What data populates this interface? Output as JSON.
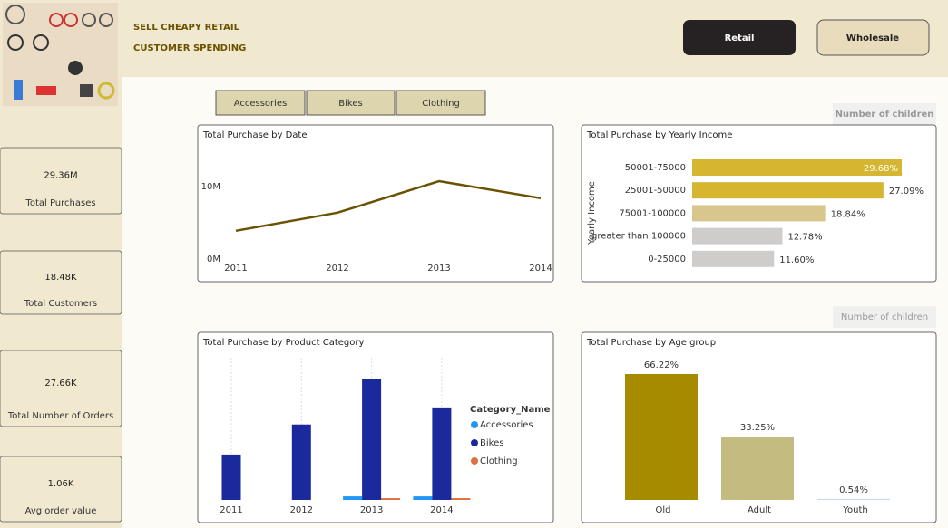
{
  "header": {
    "title_lines": [
      "SELL CHEAPY RETAIL",
      "CUSTOMER SPENDING"
    ]
  },
  "buttons": [
    "Retail",
    "Wholesale"
  ],
  "tabs": [
    "Accessories",
    "Bikes",
    "Clothing"
  ],
  "filters": [
    "Number of children",
    "Number of children"
  ],
  "kpis": [
    {
      "value": "29.36M",
      "label": "Total Purchases"
    },
    {
      "value": "18.48K",
      "label": "Total Customers"
    },
    {
      "value": "27.66K",
      "label": "Total Number of Orders"
    },
    {
      "value": "1.06K",
      "label": "Avg order value"
    }
  ],
  "chart_data": [
    {
      "type": "line",
      "title": "Total Purchase by Date",
      "color": "#6b5200",
      "x": [
        2011,
        2012,
        2013,
        2014
      ],
      "values": [
        3900000,
        6400000,
        10750000,
        8400000
      ],
      "xlim": [
        2011,
        2014
      ],
      "xticks": [
        2011,
        2012,
        2013,
        2014
      ],
      "ylim": [
        0,
        12000000
      ],
      "yticks": [
        {
          "value": 0,
          "label": "0M"
        },
        {
          "value": 10000000,
          "label": "10M"
        }
      ]
    },
    {
      "type": "hbar",
      "title": "Total Purchase by Yearly Income",
      "y_label": "Yearly Income",
      "categories": [
        "50001-75000",
        "25001-50000",
        "75001-100000",
        "greater than 100000",
        "0-25000"
      ],
      "values": [
        29.68,
        27.09,
        18.84,
        12.78,
        11.6
      ],
      "value_labels": [
        "29.68%",
        "27.09%",
        "18.84%",
        "12.78%",
        "11.60%"
      ],
      "colors": [
        "#d6b531",
        "#d6b531",
        "#d8c68c",
        "#cfcccc",
        "#cfcccc"
      ]
    },
    {
      "type": "grouped_bar",
      "title": "Total Purchase by Product Category",
      "legend_title": "Category_Name",
      "categories": [
        "2011",
        "2012",
        "2013",
        "2014"
      ],
      "series": [
        {
          "name": "Accessories",
          "color": "#2196f3",
          "values": [
            null,
            null,
            300000,
            300000
          ]
        },
        {
          "name": "Bikes",
          "color": "#1a2a9c",
          "values": [
            3850000,
            6400000,
            10300000,
            7850000
          ]
        },
        {
          "name": "Clothing",
          "color": "#e07040",
          "values": [
            null,
            null,
            150000,
            150000
          ]
        }
      ]
    },
    {
      "type": "bar",
      "title": "Total Purchase by Age group",
      "categories": [
        "Old",
        "Adult",
        "Youth"
      ],
      "values": [
        66.22,
        33.25,
        0.54
      ],
      "value_labels": [
        "66.22%",
        "33.25%",
        "0.54%"
      ],
      "colors": [
        "#a68a00",
        "#c4bb80",
        "#c9d6ec"
      ]
    }
  ]
}
